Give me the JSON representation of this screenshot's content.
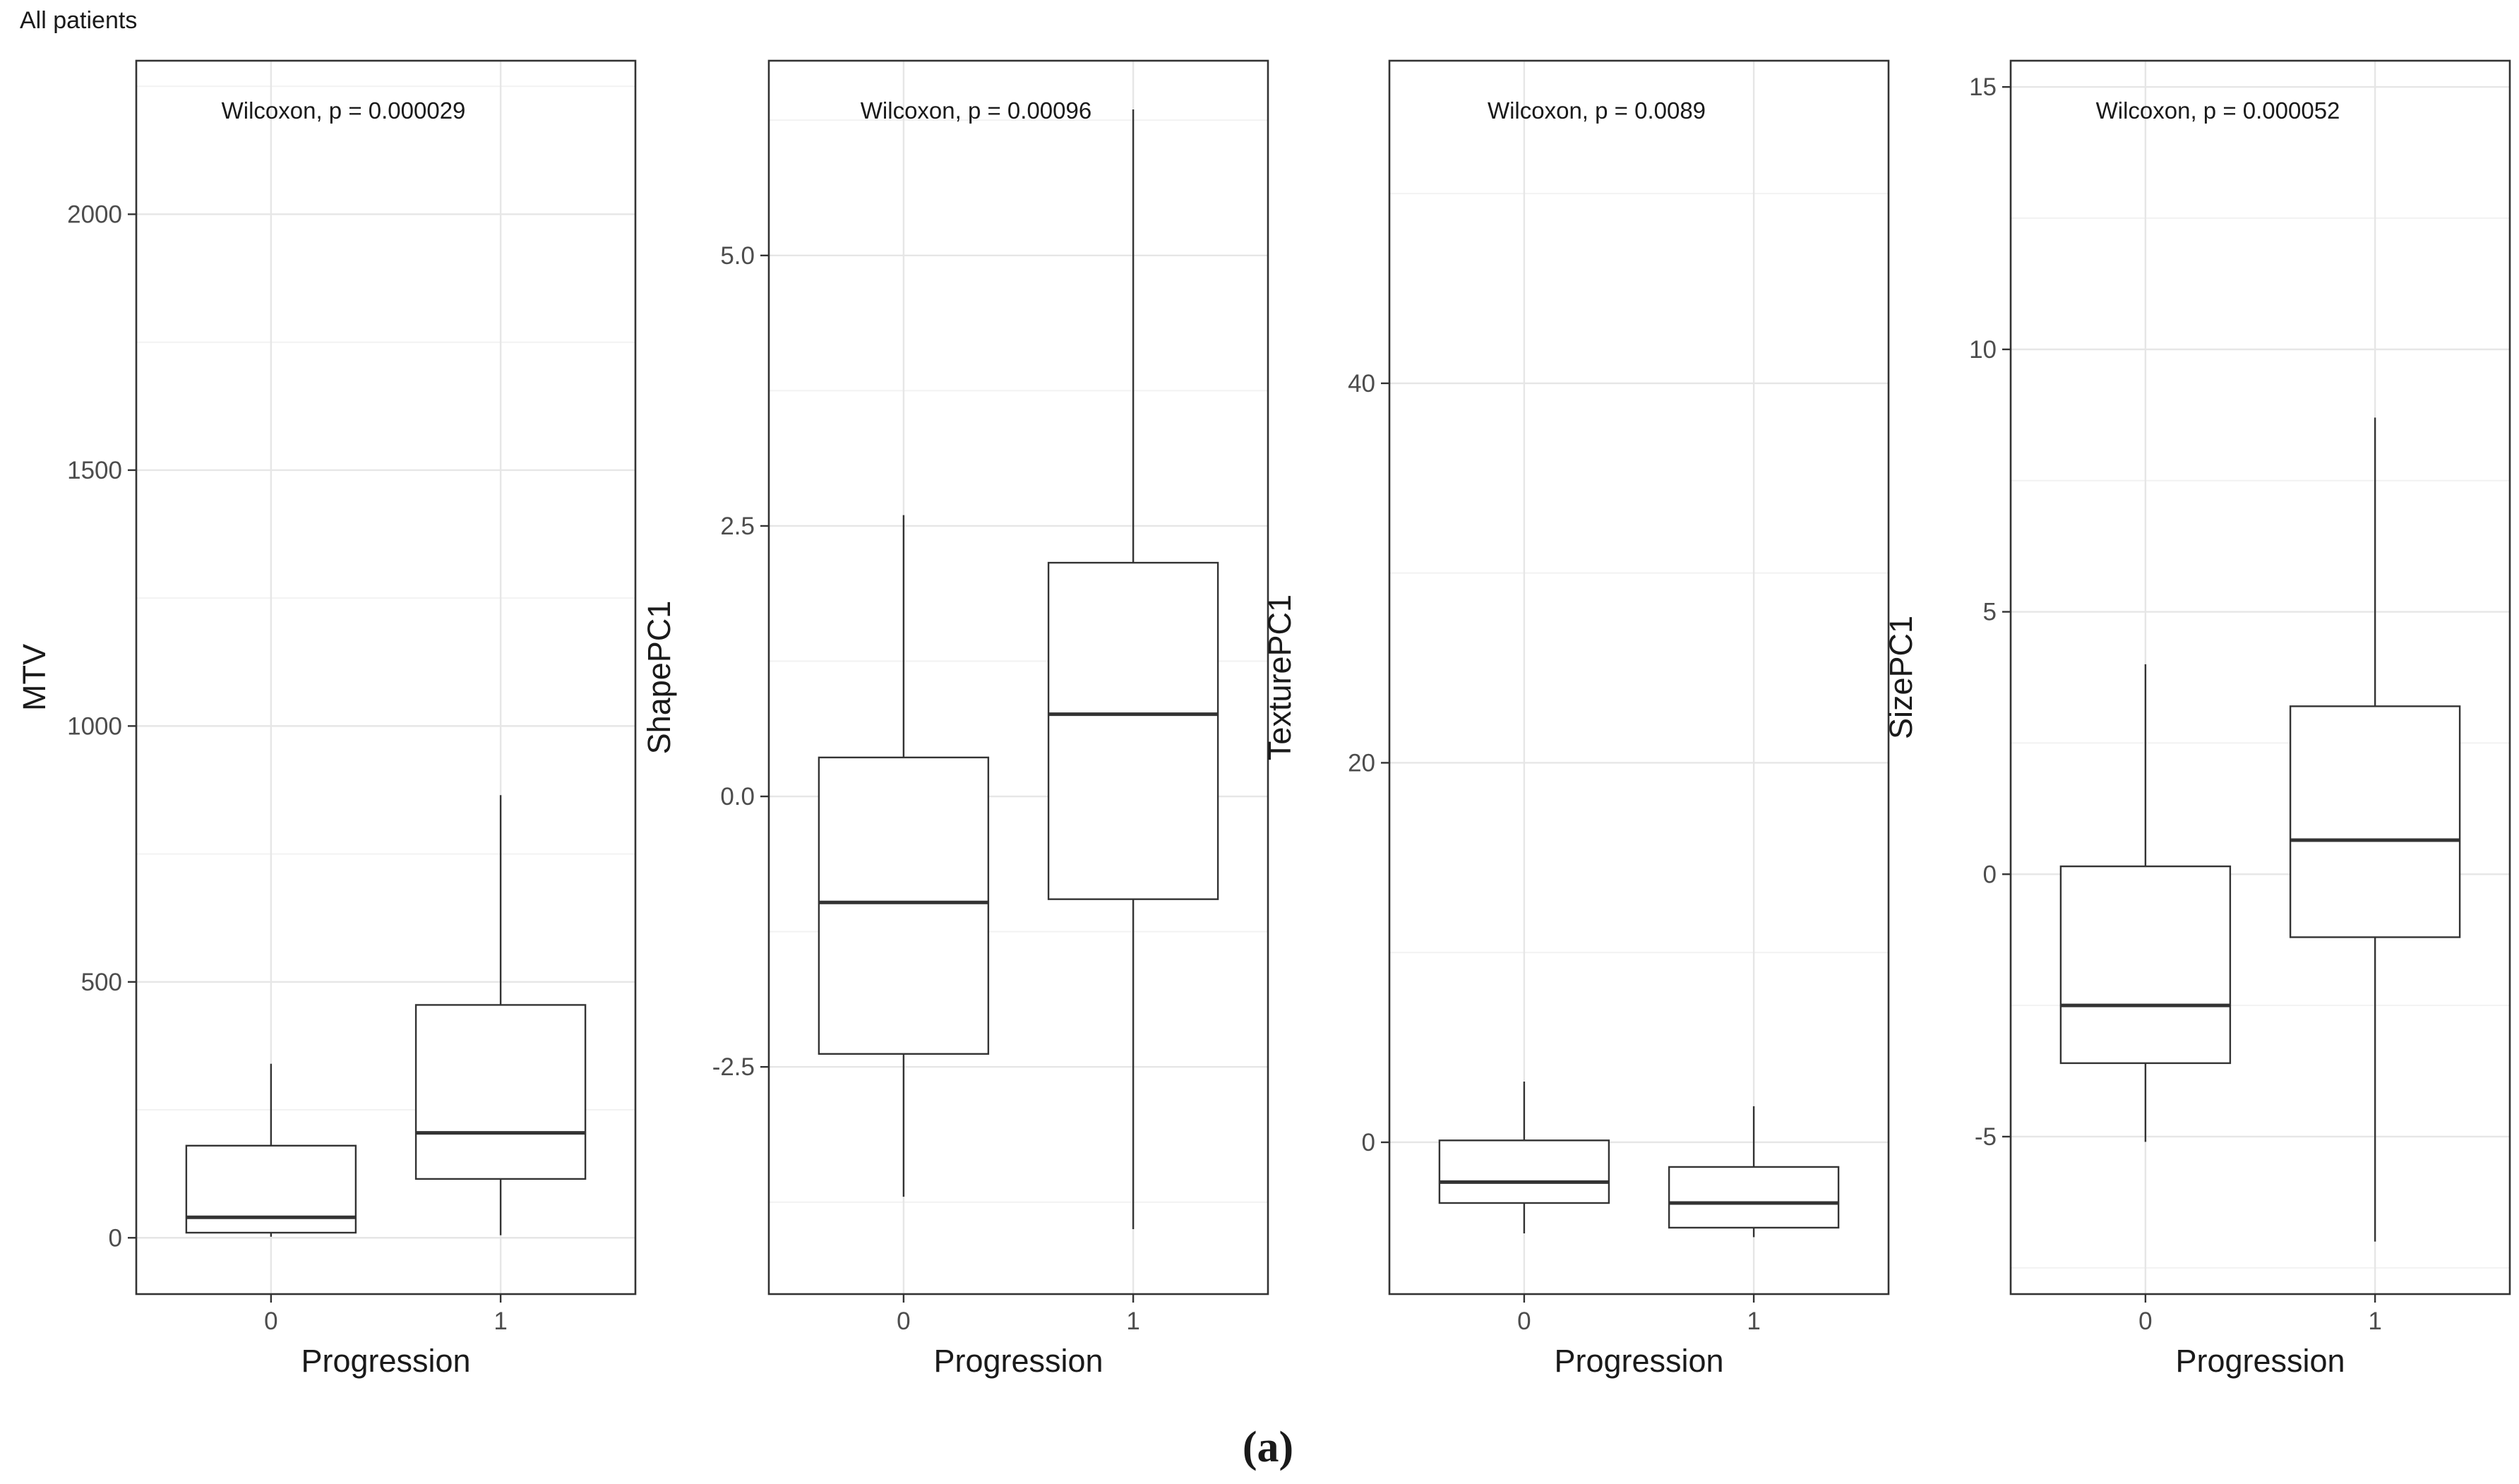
{
  "figure": {
    "title": "All patients",
    "caption": "(a)"
  },
  "colors": {
    "background": "#ffffff",
    "panel_border": "#333333",
    "grid_major": "#e6e6e6",
    "grid_minor": "#f2f2f2",
    "box_line": "#333333",
    "text": "#1a1a1a",
    "tick_text": "#4d4d4d"
  },
  "chart_data": [
    {
      "type": "box",
      "title": "",
      "xlabel": "Progression",
      "ylabel": "MTV",
      "annotation": "Wilcoxon, p = 0.000029",
      "ylim": [
        -110,
        2300
      ],
      "yticks": [
        0,
        500,
        1000,
        1500,
        2000
      ],
      "ytick_labels": [
        "0",
        "500",
        "1000",
        "1500",
        "2000"
      ],
      "categories": [
        "0",
        "1"
      ],
      "boxes": [
        {
          "category": "0",
          "whisker_low": 2,
          "q1": 10,
          "median": 40,
          "q3": 180,
          "whisker_high": 340
        },
        {
          "category": "1",
          "whisker_low": 5,
          "q1": 115,
          "median": 205,
          "q3": 455,
          "whisker_high": 865
        }
      ]
    },
    {
      "type": "box",
      "title": "",
      "xlabel": "Progression",
      "ylabel": "ShapePC1",
      "annotation": "Wilcoxon, p = 0.00096",
      "ylim": [
        -4.6,
        6.8
      ],
      "yticks": [
        -2.5,
        0.0,
        2.5,
        5.0
      ],
      "ytick_labels": [
        "-2.5",
        "0.0",
        "2.5",
        "5.0"
      ],
      "categories": [
        "0",
        "1"
      ],
      "boxes": [
        {
          "category": "0",
          "whisker_low": -3.7,
          "q1": -2.38,
          "median": -0.98,
          "q3": 0.36,
          "whisker_high": 2.6
        },
        {
          "category": "1",
          "whisker_low": -4.0,
          "q1": -0.95,
          "median": 0.76,
          "q3": 2.16,
          "whisker_high": 6.35
        }
      ]
    },
    {
      "type": "box",
      "title": "",
      "xlabel": "Progression",
      "ylabel": "TexturePC1",
      "annotation": "Wilcoxon, p = 0.0089",
      "ylim": [
        -8,
        57
      ],
      "yticks": [
        0,
        20,
        40
      ],
      "ytick_labels": [
        "0",
        "20",
        "40"
      ],
      "categories": [
        "0",
        "1"
      ],
      "boxes": [
        {
          "category": "0",
          "whisker_low": -4.8,
          "q1": -3.2,
          "median": -2.1,
          "q3": 0.1,
          "whisker_high": 3.2
        },
        {
          "category": "1",
          "whisker_low": -5.0,
          "q1": -4.5,
          "median": -3.2,
          "q3": -1.3,
          "whisker_high": 1.9
        }
      ]
    },
    {
      "type": "box",
      "title": "",
      "xlabel": "Progression",
      "ylabel": "SizePC1",
      "annotation": "Wilcoxon, p = 0.000052",
      "ylim": [
        -8,
        15.5
      ],
      "yticks": [
        -5,
        0,
        5,
        10,
        15
      ],
      "ytick_labels": [
        "-5",
        "0",
        "5",
        "10",
        "15"
      ],
      "categories": [
        "0",
        "1"
      ],
      "boxes": [
        {
          "category": "0",
          "whisker_low": -5.1,
          "q1": -3.6,
          "median": -2.5,
          "q3": 0.15,
          "whisker_high": 4.0
        },
        {
          "category": "1",
          "whisker_low": -7.0,
          "q1": -1.2,
          "median": 0.65,
          "q3": 3.2,
          "whisker_high": 8.7
        }
      ]
    }
  ]
}
